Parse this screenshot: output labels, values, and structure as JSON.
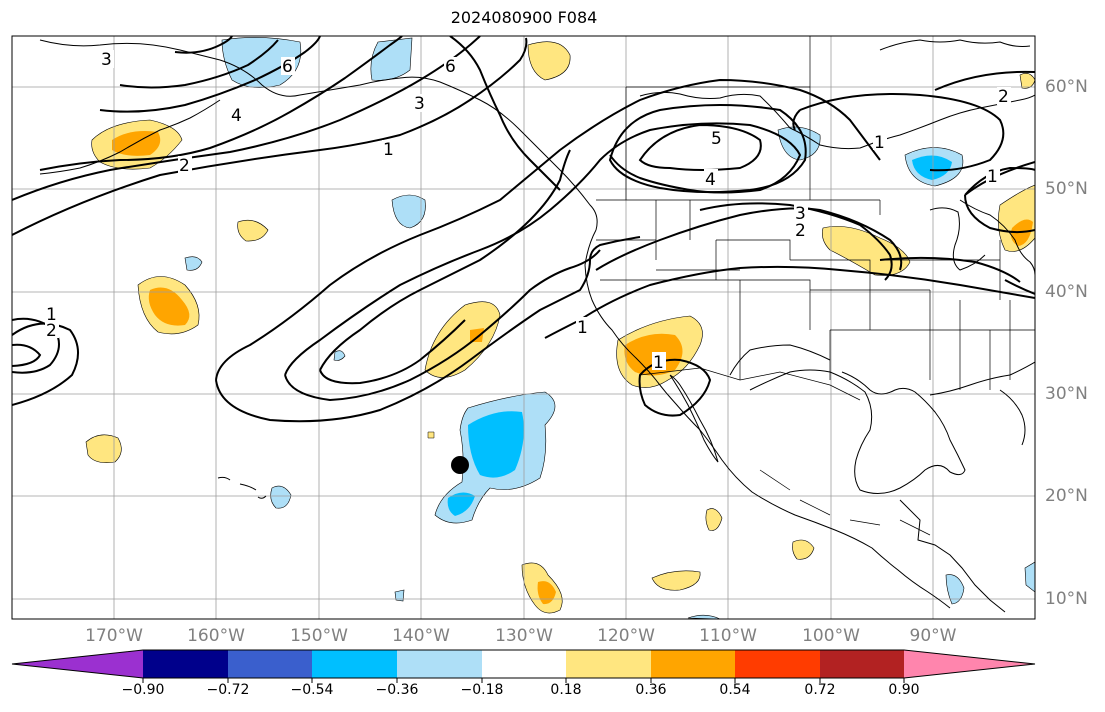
{
  "title": "2024080900 F084",
  "lon_labels": [
    "170°W",
    "160°W",
    "150°W",
    "140°W",
    "130°W",
    "120°W",
    "110°W",
    "100°W",
    "90°W"
  ],
  "lat_labels": [
    "60°N",
    "50°N",
    "40°N",
    "30°N",
    "20°N",
    "10°N"
  ],
  "contour_labels": [
    "1",
    "2",
    "3",
    "4",
    "5",
    "6"
  ],
  "colorbar": {
    "ticks": [
      "−0.90",
      "−0.72",
      "−0.54",
      "−0.36",
      "−0.18",
      "0.18",
      "0.36",
      "0.54",
      "0.72",
      "0.90"
    ],
    "colors": [
      "#9b30d0",
      "#00008b",
      "#3a5fcd",
      "#00bfff",
      "#aedff7",
      "#ffffff",
      "#ffe680",
      "#ffa500",
      "#ff3c00",
      "#b22222",
      "#ff85ad"
    ]
  },
  "marker": "black-dot"
}
